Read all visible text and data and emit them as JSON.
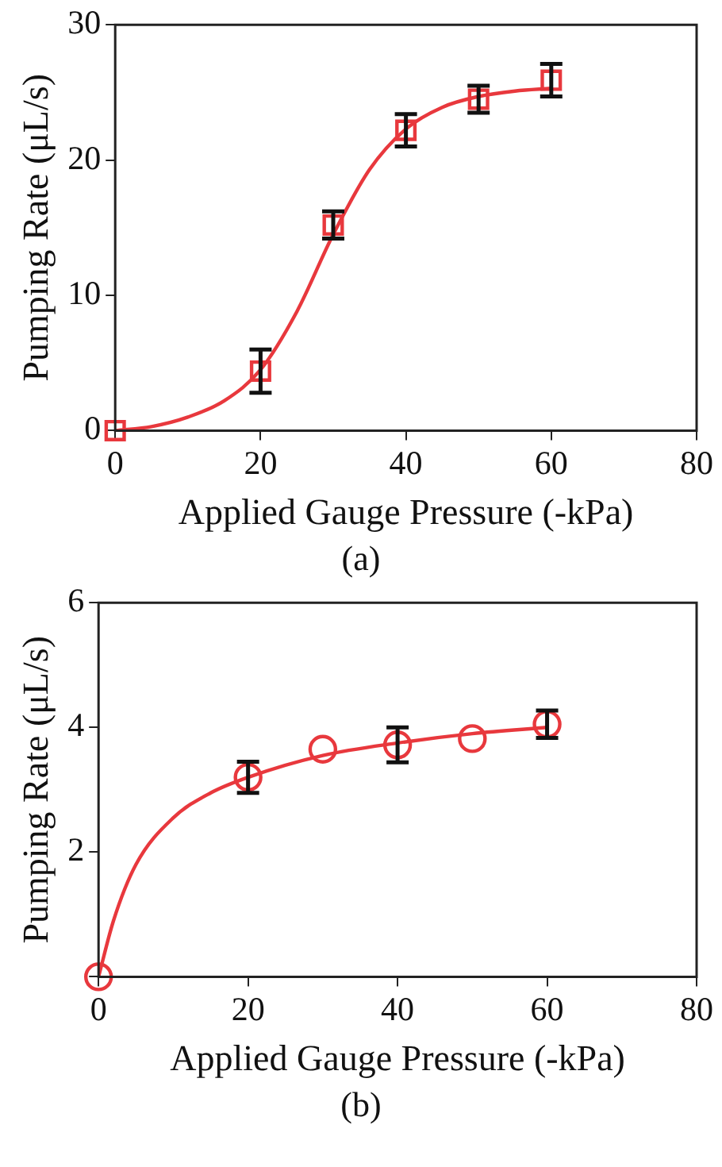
{
  "chart_data": [
    {
      "type": "scatter",
      "xlabel": "Applied Gauge Pressure (-kPa)",
      "ylabel": "Pumping Rate (μL/s)",
      "annotations": [
        "(a)"
      ],
      "xlim": [
        0,
        80
      ],
      "xticks": [
        0,
        20,
        40,
        60,
        80
      ],
      "ylim": [
        0,
        30
      ],
      "yticks": [
        0,
        10,
        20,
        30
      ],
      "grid": false,
      "legend": false,
      "series": [
        {
          "type": "scatter",
          "marker": "square",
          "color": "#e8383d",
          "x": [
            0,
            20,
            30,
            40,
            50,
            60
          ],
          "values": [
            0,
            4.4,
            15.2,
            22.2,
            24.5,
            25.9
          ],
          "errors": [
            null,
            1.6,
            1.0,
            1.2,
            1.0,
            1.2
          ]
        },
        {
          "type": "line",
          "marker": "none",
          "color": "#e8383d",
          "x": [
            0,
            5,
            10,
            15,
            20,
            25,
            30,
            35,
            40,
            45,
            50,
            55,
            60
          ],
          "values": [
            0,
            0.3,
            1.0,
            2.2,
            4.5,
            8.8,
            14.5,
            19.3,
            22.3,
            23.9,
            24.7,
            25.1,
            25.3
          ]
        }
      ]
    },
    {
      "type": "scatter",
      "xlabel": "Applied Gauge Pressure (-kPa)",
      "ylabel": "Pumping Rate (μL/s)",
      "annotations": [
        "(b)"
      ],
      "xlim": [
        0,
        80
      ],
      "xticks": [
        0,
        20,
        40,
        60,
        80
      ],
      "ylim": [
        0,
        6
      ],
      "yticks": [
        {
          "value": 0,
          "label": null
        },
        2,
        4,
        6
      ],
      "grid": false,
      "legend": false,
      "series": [
        {
          "type": "scatter",
          "marker": "circle",
          "color": "#e8383d",
          "x": [
            0,
            20,
            30,
            40,
            50,
            60
          ],
          "values": [
            0,
            3.2,
            3.65,
            3.72,
            3.82,
            4.05
          ],
          "errors": [
            null,
            0.25,
            null,
            0.28,
            null,
            0.22
          ]
        },
        {
          "type": "line",
          "marker": "none",
          "color": "#e8383d",
          "x": [
            0,
            2,
            5,
            10,
            15,
            20,
            30,
            40,
            50,
            60
          ],
          "values": [
            0,
            0.9,
            1.8,
            2.55,
            2.95,
            3.2,
            3.55,
            3.75,
            3.9,
            4.0
          ]
        }
      ]
    }
  ]
}
